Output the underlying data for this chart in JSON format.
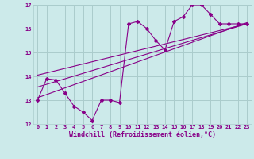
{
  "xlabel": "Windchill (Refroidissement éolien,°C)",
  "bg_color": "#cceaea",
  "grid_color": "#aacccc",
  "line_color": "#880088",
  "xlim": [
    -0.5,
    23.5
  ],
  "ylim": [
    12,
    17
  ],
  "yticks": [
    12,
    13,
    14,
    15,
    16,
    17
  ],
  "xticks": [
    0,
    1,
    2,
    3,
    4,
    5,
    6,
    7,
    8,
    9,
    10,
    11,
    12,
    13,
    14,
    15,
    16,
    17,
    18,
    19,
    20,
    21,
    22,
    23
  ],
  "main_x": [
    0,
    1,
    2,
    3,
    4,
    5,
    6,
    7,
    8,
    9,
    10,
    11,
    12,
    13,
    14,
    15,
    16,
    17,
    18,
    19,
    20,
    21,
    22,
    23
  ],
  "main_y": [
    13.0,
    13.9,
    13.85,
    13.3,
    12.75,
    12.5,
    12.15,
    13.0,
    13.0,
    12.9,
    16.2,
    16.3,
    16.0,
    15.5,
    15.1,
    16.3,
    16.5,
    17.0,
    17.0,
    16.6,
    16.2,
    16.2,
    16.2,
    16.2
  ],
  "trend1_x": [
    0,
    23
  ],
  "trend1_y": [
    13.55,
    16.2
  ],
  "trend2_x": [
    0,
    23
  ],
  "trend2_y": [
    14.05,
    16.2
  ],
  "trend3_x": [
    0,
    23
  ],
  "trend3_y": [
    13.1,
    16.25
  ]
}
